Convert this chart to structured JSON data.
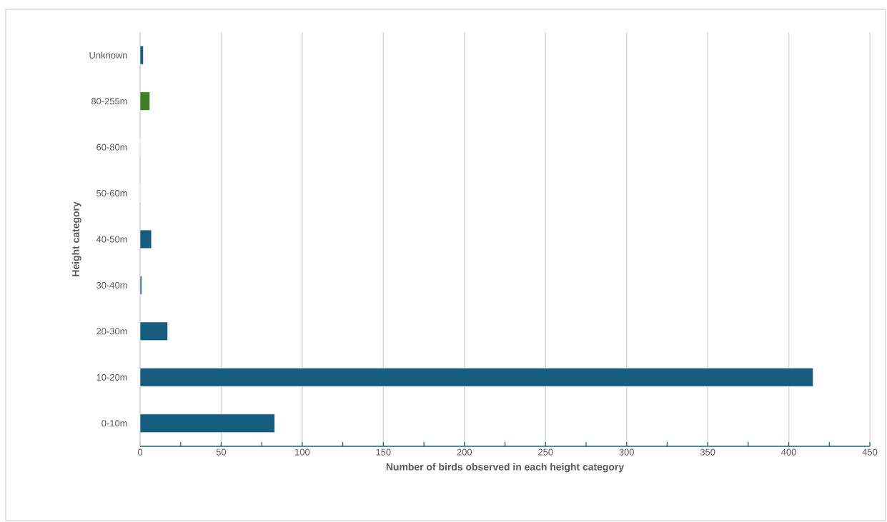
{
  "chart_data": {
    "type": "bar",
    "orientation": "horizontal",
    "xlabel": "Number of birds observed in each height category",
    "ylabel": "Height category",
    "categories": [
      "Unknown",
      "80-255m",
      "60-80m",
      "50-60m",
      "40-50m",
      "30-40m",
      "20-30m",
      "10-20m",
      "0-10m"
    ],
    "values": [
      2,
      6,
      0,
      0,
      7,
      1,
      17,
      415,
      83
    ],
    "colors": [
      "#175e7e",
      "#3f7d26",
      "#175e7e",
      "#175e7e",
      "#175e7e",
      "#175e7e",
      "#175e7e",
      "#175e7e",
      "#175e7e"
    ],
    "xlim": [
      0,
      450
    ],
    "xticks": [
      0,
      50,
      100,
      150,
      200,
      250,
      300,
      350,
      400,
      450
    ],
    "grid": "x"
  }
}
